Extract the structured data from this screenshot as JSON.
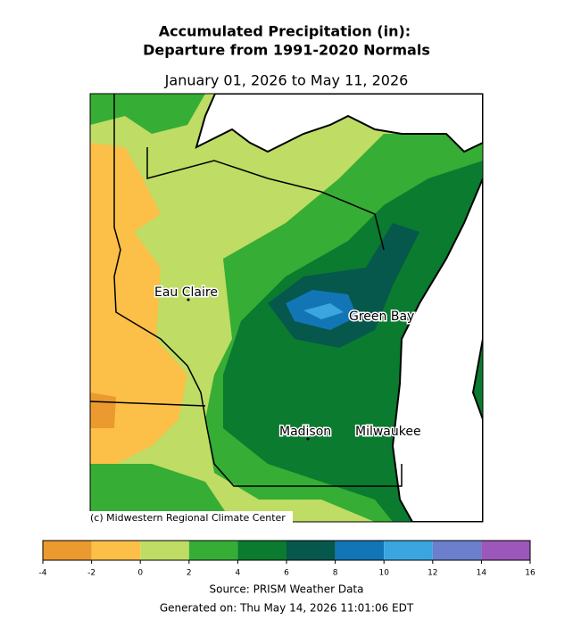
{
  "header": {
    "title_line1": "Accumulated Precipitation (in):",
    "title_line2": "Departure from 1991-2020 Normals",
    "date_range": "January 01, 2026 to May 11, 2026"
  },
  "map": {
    "cities": [
      {
        "label": "Eau Claire"
      },
      {
        "label": "Green Bay"
      },
      {
        "label": "Madison"
      },
      {
        "label": "Milwaukee"
      }
    ],
    "credit": "(c) Midwestern Regional Climate Center"
  },
  "colorbar": {
    "ticks": [
      -4,
      -2,
      0,
      2,
      4,
      6,
      8,
      10,
      12,
      14,
      16
    ],
    "colors": [
      "#ea9a2f",
      "#fcbf47",
      "#bfdc64",
      "#36ad34",
      "#0a7b2f",
      "#06574c",
      "#1276b6",
      "#3aa5df",
      "#6b7fcc",
      "#9b57b9"
    ]
  },
  "footer": {
    "source": "Source: PRISM Weather Data",
    "generated": "Generated on: Thu May 14, 2026 11:01:06 EDT"
  }
}
